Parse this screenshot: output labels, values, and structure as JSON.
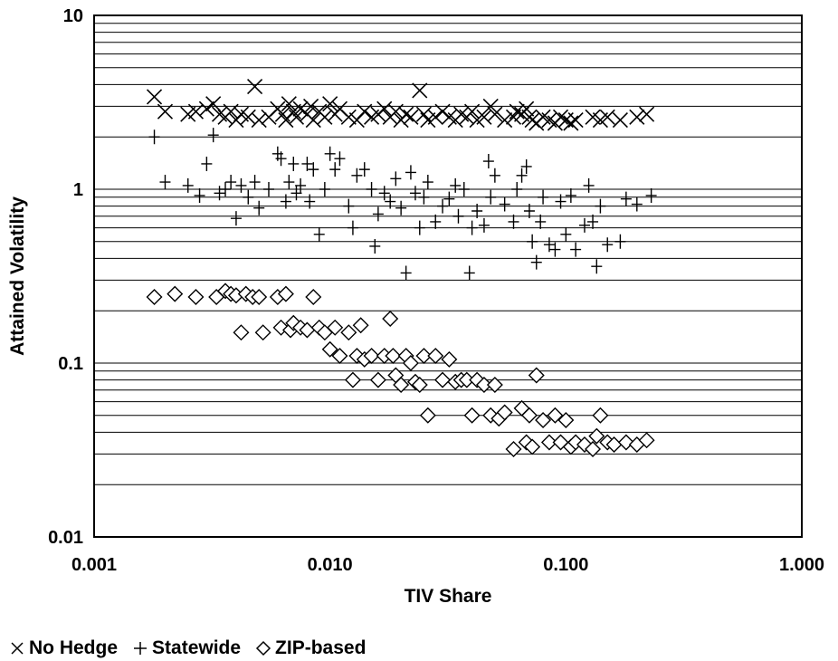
{
  "chart_data": {
    "type": "scatter",
    "xlabel": "TIV Share",
    "ylabel": "Attained Volatility",
    "x_scale": "log",
    "y_scale": "log",
    "xlim": [
      0.001,
      1.0
    ],
    "ylim": [
      0.01,
      10
    ],
    "grid": "horizontal",
    "legend_position": "bottom-left",
    "x_ticks": [
      {
        "value": 0.001,
        "label": "0.001"
      },
      {
        "value": 0.01,
        "label": "0.010"
      },
      {
        "value": 0.1,
        "label": "0.100"
      },
      {
        "value": 1.0,
        "label": "1.000"
      }
    ],
    "y_ticks": [
      {
        "value": 0.01,
        "label": "0.01"
      },
      {
        "value": 0.1,
        "label": "0.1"
      },
      {
        "value": 1,
        "label": "1"
      },
      {
        "value": 10,
        "label": "10"
      }
    ],
    "series": [
      {
        "name": "No Hedge",
        "marker": "x",
        "points": [
          [
            0.0018,
            3.4
          ],
          [
            0.002,
            2.8
          ],
          [
            0.0025,
            2.7
          ],
          [
            0.0027,
            2.8
          ],
          [
            0.003,
            2.9
          ],
          [
            0.0032,
            3.1
          ],
          [
            0.0034,
            2.7
          ],
          [
            0.0036,
            2.6
          ],
          [
            0.0038,
            2.8
          ],
          [
            0.004,
            2.5
          ],
          [
            0.0042,
            2.7
          ],
          [
            0.0045,
            2.6
          ],
          [
            0.0048,
            3.9
          ],
          [
            0.005,
            2.5
          ],
          [
            0.0055,
            2.6
          ],
          [
            0.006,
            2.9
          ],
          [
            0.0063,
            2.7
          ],
          [
            0.0065,
            2.5
          ],
          [
            0.0067,
            3.1
          ],
          [
            0.007,
            2.8
          ],
          [
            0.0072,
            2.6
          ],
          [
            0.0075,
            2.9
          ],
          [
            0.008,
            2.7
          ],
          [
            0.0083,
            3.0
          ],
          [
            0.0085,
            2.5
          ],
          [
            0.009,
            2.8
          ],
          [
            0.0095,
            2.6
          ],
          [
            0.01,
            3.1
          ],
          [
            0.0105,
            2.7
          ],
          [
            0.011,
            2.9
          ],
          [
            0.012,
            2.6
          ],
          [
            0.013,
            2.5
          ],
          [
            0.014,
            2.8
          ],
          [
            0.015,
            2.6
          ],
          [
            0.016,
            2.7
          ],
          [
            0.017,
            2.9
          ],
          [
            0.018,
            2.6
          ],
          [
            0.019,
            2.8
          ],
          [
            0.02,
            2.5
          ],
          [
            0.021,
            2.7
          ],
          [
            0.022,
            2.6
          ],
          [
            0.024,
            3.7
          ],
          [
            0.025,
            2.7
          ],
          [
            0.026,
            2.5
          ],
          [
            0.028,
            2.6
          ],
          [
            0.03,
            2.8
          ],
          [
            0.032,
            2.6
          ],
          [
            0.034,
            2.5
          ],
          [
            0.036,
            2.7
          ],
          [
            0.038,
            2.6
          ],
          [
            0.04,
            2.8
          ],
          [
            0.042,
            2.5
          ],
          [
            0.045,
            2.6
          ],
          [
            0.048,
            3.0
          ],
          [
            0.05,
            2.7
          ],
          [
            0.055,
            2.5
          ],
          [
            0.06,
            2.6
          ],
          [
            0.062,
            2.8
          ],
          [
            0.065,
            2.7
          ],
          [
            0.068,
            2.9
          ],
          [
            0.07,
            2.6
          ],
          [
            0.072,
            2.5
          ],
          [
            0.075,
            2.4
          ],
          [
            0.08,
            2.6
          ],
          [
            0.085,
            2.5
          ],
          [
            0.09,
            2.4
          ],
          [
            0.095,
            2.6
          ],
          [
            0.1,
            2.5
          ],
          [
            0.105,
            2.4
          ],
          [
            0.11,
            2.5
          ],
          [
            0.13,
            2.6
          ],
          [
            0.14,
            2.5
          ],
          [
            0.15,
            2.6
          ],
          [
            0.17,
            2.5
          ],
          [
            0.2,
            2.6
          ],
          [
            0.22,
            2.7
          ]
        ]
      },
      {
        "name": "Statewide",
        "marker": "+",
        "points": [
          [
            0.0018,
            2.0
          ],
          [
            0.002,
            1.1
          ],
          [
            0.0025,
            1.05
          ],
          [
            0.0028,
            0.92
          ],
          [
            0.003,
            1.4
          ],
          [
            0.0032,
            2.05
          ],
          [
            0.0034,
            0.95
          ],
          [
            0.0036,
            1.0
          ],
          [
            0.0038,
            1.1
          ],
          [
            0.004,
            0.68
          ],
          [
            0.0042,
            1.05
          ],
          [
            0.0045,
            0.9
          ],
          [
            0.0048,
            1.1
          ],
          [
            0.005,
            0.78
          ],
          [
            0.0055,
            1.0
          ],
          [
            0.006,
            1.6
          ],
          [
            0.0062,
            1.5
          ],
          [
            0.0065,
            0.85
          ],
          [
            0.0067,
            1.1
          ],
          [
            0.007,
            1.4
          ],
          [
            0.0072,
            0.95
          ],
          [
            0.0075,
            1.05
          ],
          [
            0.008,
            1.4
          ],
          [
            0.0082,
            0.85
          ],
          [
            0.0085,
            1.3
          ],
          [
            0.009,
            0.55
          ],
          [
            0.0095,
            1.0
          ],
          [
            0.01,
            1.6
          ],
          [
            0.0105,
            1.3
          ],
          [
            0.011,
            1.5
          ],
          [
            0.012,
            0.8
          ],
          [
            0.0125,
            0.6
          ],
          [
            0.013,
            1.2
          ],
          [
            0.014,
            1.3
          ],
          [
            0.015,
            1.0
          ],
          [
            0.016,
            0.72
          ],
          [
            0.0155,
            0.47
          ],
          [
            0.017,
            0.95
          ],
          [
            0.018,
            0.85
          ],
          [
            0.019,
            1.15
          ],
          [
            0.02,
            0.78
          ],
          [
            0.021,
            0.33
          ],
          [
            0.022,
            1.25
          ],
          [
            0.023,
            0.95
          ],
          [
            0.024,
            0.6
          ],
          [
            0.025,
            0.9
          ],
          [
            0.026,
            1.1
          ],
          [
            0.028,
            0.65
          ],
          [
            0.03,
            0.8
          ],
          [
            0.032,
            0.88
          ],
          [
            0.034,
            1.05
          ],
          [
            0.035,
            0.7
          ],
          [
            0.037,
            1.0
          ],
          [
            0.039,
            0.33
          ],
          [
            0.04,
            0.6
          ],
          [
            0.042,
            0.75
          ],
          [
            0.045,
            0.62
          ],
          [
            0.047,
            1.45
          ],
          [
            0.048,
            0.9
          ],
          [
            0.05,
            1.2
          ],
          [
            0.055,
            0.82
          ],
          [
            0.06,
            0.65
          ],
          [
            0.062,
            1.0
          ],
          [
            0.065,
            1.2
          ],
          [
            0.068,
            1.35
          ],
          [
            0.07,
            0.75
          ],
          [
            0.072,
            0.5
          ],
          [
            0.075,
            0.38
          ],
          [
            0.078,
            0.65
          ],
          [
            0.08,
            0.9
          ],
          [
            0.085,
            0.48
          ],
          [
            0.09,
            0.45
          ],
          [
            0.095,
            0.85
          ],
          [
            0.1,
            0.55
          ],
          [
            0.105,
            0.92
          ],
          [
            0.11,
            0.45
          ],
          [
            0.12,
            0.62
          ],
          [
            0.125,
            1.05
          ],
          [
            0.13,
            0.65
          ],
          [
            0.135,
            0.36
          ],
          [
            0.14,
            0.8
          ],
          [
            0.15,
            0.48
          ],
          [
            0.17,
            0.5
          ],
          [
            0.18,
            0.88
          ],
          [
            0.2,
            0.82
          ],
          [
            0.23,
            0.92
          ]
        ]
      },
      {
        "name": "ZIP-based",
        "marker": "diamond",
        "points": [
          [
            0.0018,
            0.24
          ],
          [
            0.0022,
            0.25
          ],
          [
            0.0027,
            0.24
          ],
          [
            0.0033,
            0.24
          ],
          [
            0.0036,
            0.26
          ],
          [
            0.0038,
            0.25
          ],
          [
            0.004,
            0.245
          ],
          [
            0.0042,
            0.15
          ],
          [
            0.0044,
            0.25
          ],
          [
            0.0047,
            0.24
          ],
          [
            0.005,
            0.24
          ],
          [
            0.0052,
            0.15
          ],
          [
            0.006,
            0.24
          ],
          [
            0.0062,
            0.16
          ],
          [
            0.0065,
            0.25
          ],
          [
            0.0068,
            0.155
          ],
          [
            0.007,
            0.17
          ],
          [
            0.0075,
            0.16
          ],
          [
            0.008,
            0.155
          ],
          [
            0.0085,
            0.24
          ],
          [
            0.009,
            0.16
          ],
          [
            0.0095,
            0.15
          ],
          [
            0.01,
            0.12
          ],
          [
            0.0105,
            0.16
          ],
          [
            0.011,
            0.11
          ],
          [
            0.012,
            0.15
          ],
          [
            0.0125,
            0.08
          ],
          [
            0.013,
            0.11
          ],
          [
            0.0135,
            0.165
          ],
          [
            0.014,
            0.105
          ],
          [
            0.015,
            0.11
          ],
          [
            0.016,
            0.08
          ],
          [
            0.017,
            0.11
          ],
          [
            0.018,
            0.18
          ],
          [
            0.0185,
            0.11
          ],
          [
            0.019,
            0.085
          ],
          [
            0.02,
            0.075
          ],
          [
            0.021,
            0.11
          ],
          [
            0.022,
            0.1
          ],
          [
            0.023,
            0.078
          ],
          [
            0.024,
            0.075
          ],
          [
            0.025,
            0.11
          ],
          [
            0.026,
            0.05
          ],
          [
            0.028,
            0.11
          ],
          [
            0.03,
            0.08
          ],
          [
            0.032,
            0.105
          ],
          [
            0.034,
            0.078
          ],
          [
            0.036,
            0.08
          ],
          [
            0.038,
            0.08
          ],
          [
            0.04,
            0.05
          ],
          [
            0.042,
            0.08
          ],
          [
            0.045,
            0.075
          ],
          [
            0.048,
            0.05
          ],
          [
            0.05,
            0.075
          ],
          [
            0.052,
            0.048
          ],
          [
            0.055,
            0.052
          ],
          [
            0.06,
            0.032
          ],
          [
            0.065,
            0.055
          ],
          [
            0.068,
            0.035
          ],
          [
            0.07,
            0.05
          ],
          [
            0.072,
            0.033
          ],
          [
            0.075,
            0.085
          ],
          [
            0.08,
            0.047
          ],
          [
            0.085,
            0.035
          ],
          [
            0.09,
            0.05
          ],
          [
            0.095,
            0.035
          ],
          [
            0.1,
            0.047
          ],
          [
            0.105,
            0.033
          ],
          [
            0.11,
            0.035
          ],
          [
            0.12,
            0.034
          ],
          [
            0.13,
            0.032
          ],
          [
            0.135,
            0.038
          ],
          [
            0.14,
            0.05
          ],
          [
            0.15,
            0.035
          ],
          [
            0.16,
            0.034
          ],
          [
            0.18,
            0.035
          ],
          [
            0.2,
            0.034
          ],
          [
            0.22,
            0.036
          ]
        ]
      }
    ]
  }
}
